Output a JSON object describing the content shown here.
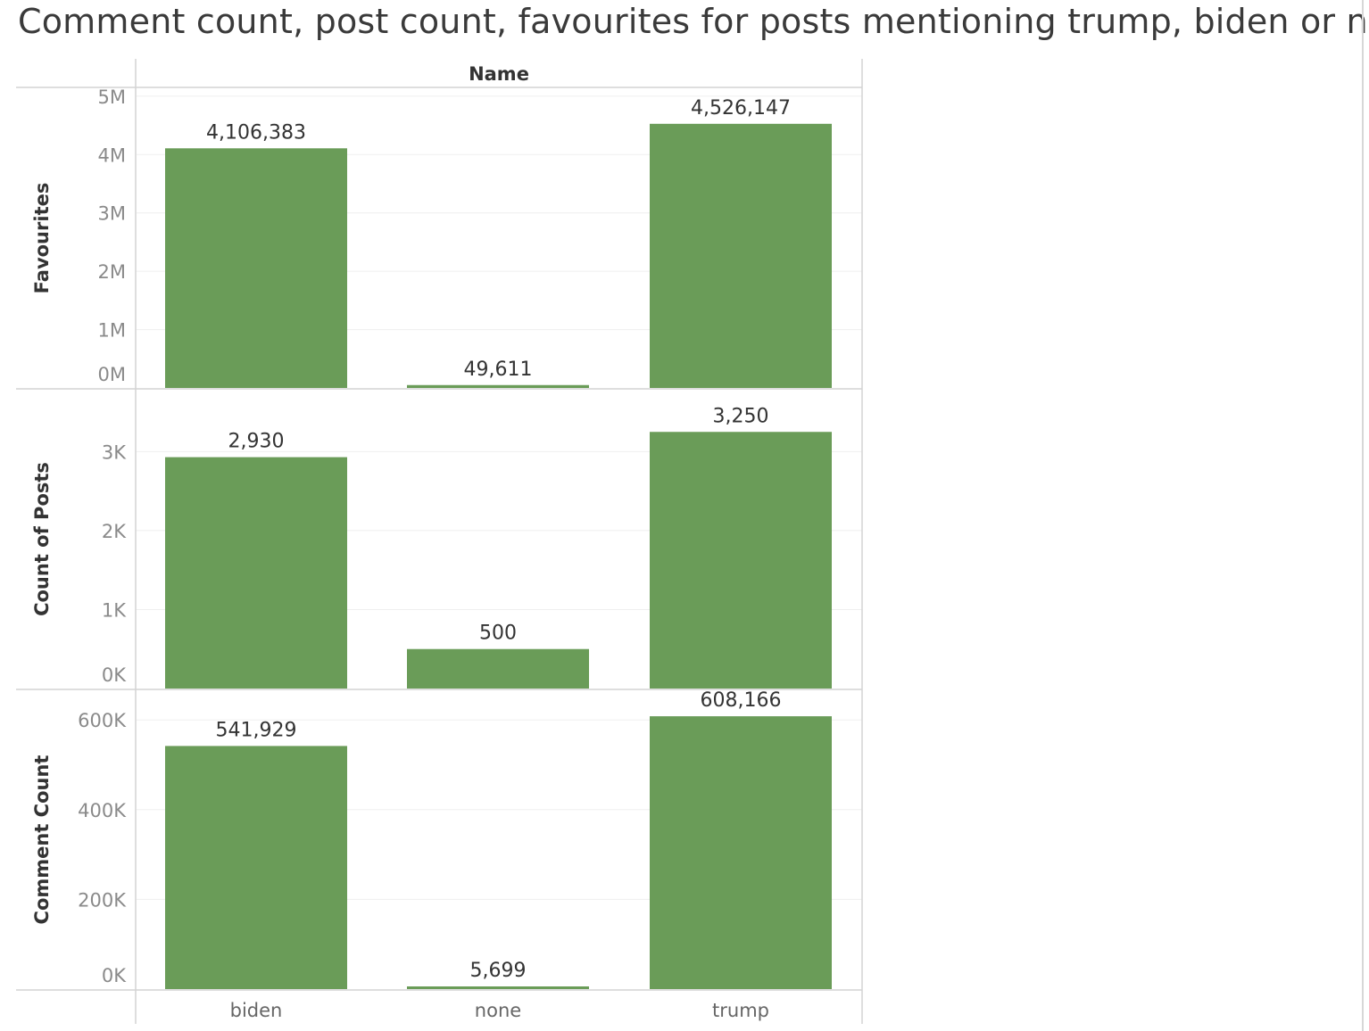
{
  "title": "Comment count, post count, favourites for posts mentioning trump, biden or none",
  "header_label": "Name",
  "colors": {
    "bar": "#6a9c58",
    "gridline": "#efefef",
    "border": "#d4d4d4"
  },
  "chart_data": {
    "type": "bar",
    "column_header": "Name",
    "categories": [
      "biden",
      "none",
      "trump"
    ],
    "panels": [
      {
        "ylabel": "Favourites",
        "values": [
          4106383,
          49611,
          4526147
        ],
        "value_labels": [
          "4,106,383",
          "49,611",
          "4,526,147"
        ],
        "ticks": [
          0,
          1000000,
          2000000,
          3000000,
          4000000,
          5000000
        ],
        "tick_labels": [
          "0M",
          "1M",
          "2M",
          "3M",
          "4M",
          "5M"
        ]
      },
      {
        "ylabel": "Count of Posts",
        "values": [
          2930,
          500,
          3250
        ],
        "value_labels": [
          "2,930",
          "500",
          "3,250"
        ],
        "ticks": [
          0,
          1000,
          2000,
          3000
        ],
        "tick_labels": [
          "0K",
          "1K",
          "2K",
          "3K"
        ]
      },
      {
        "ylabel": "Comment Count",
        "values": [
          541929,
          5699,
          608166
        ],
        "value_labels": [
          "541,929",
          "5,699",
          "608,166"
        ],
        "ticks": [
          0,
          200000,
          400000,
          600000
        ],
        "tick_labels": [
          "0K",
          "200K",
          "400K",
          "600K"
        ]
      }
    ]
  }
}
